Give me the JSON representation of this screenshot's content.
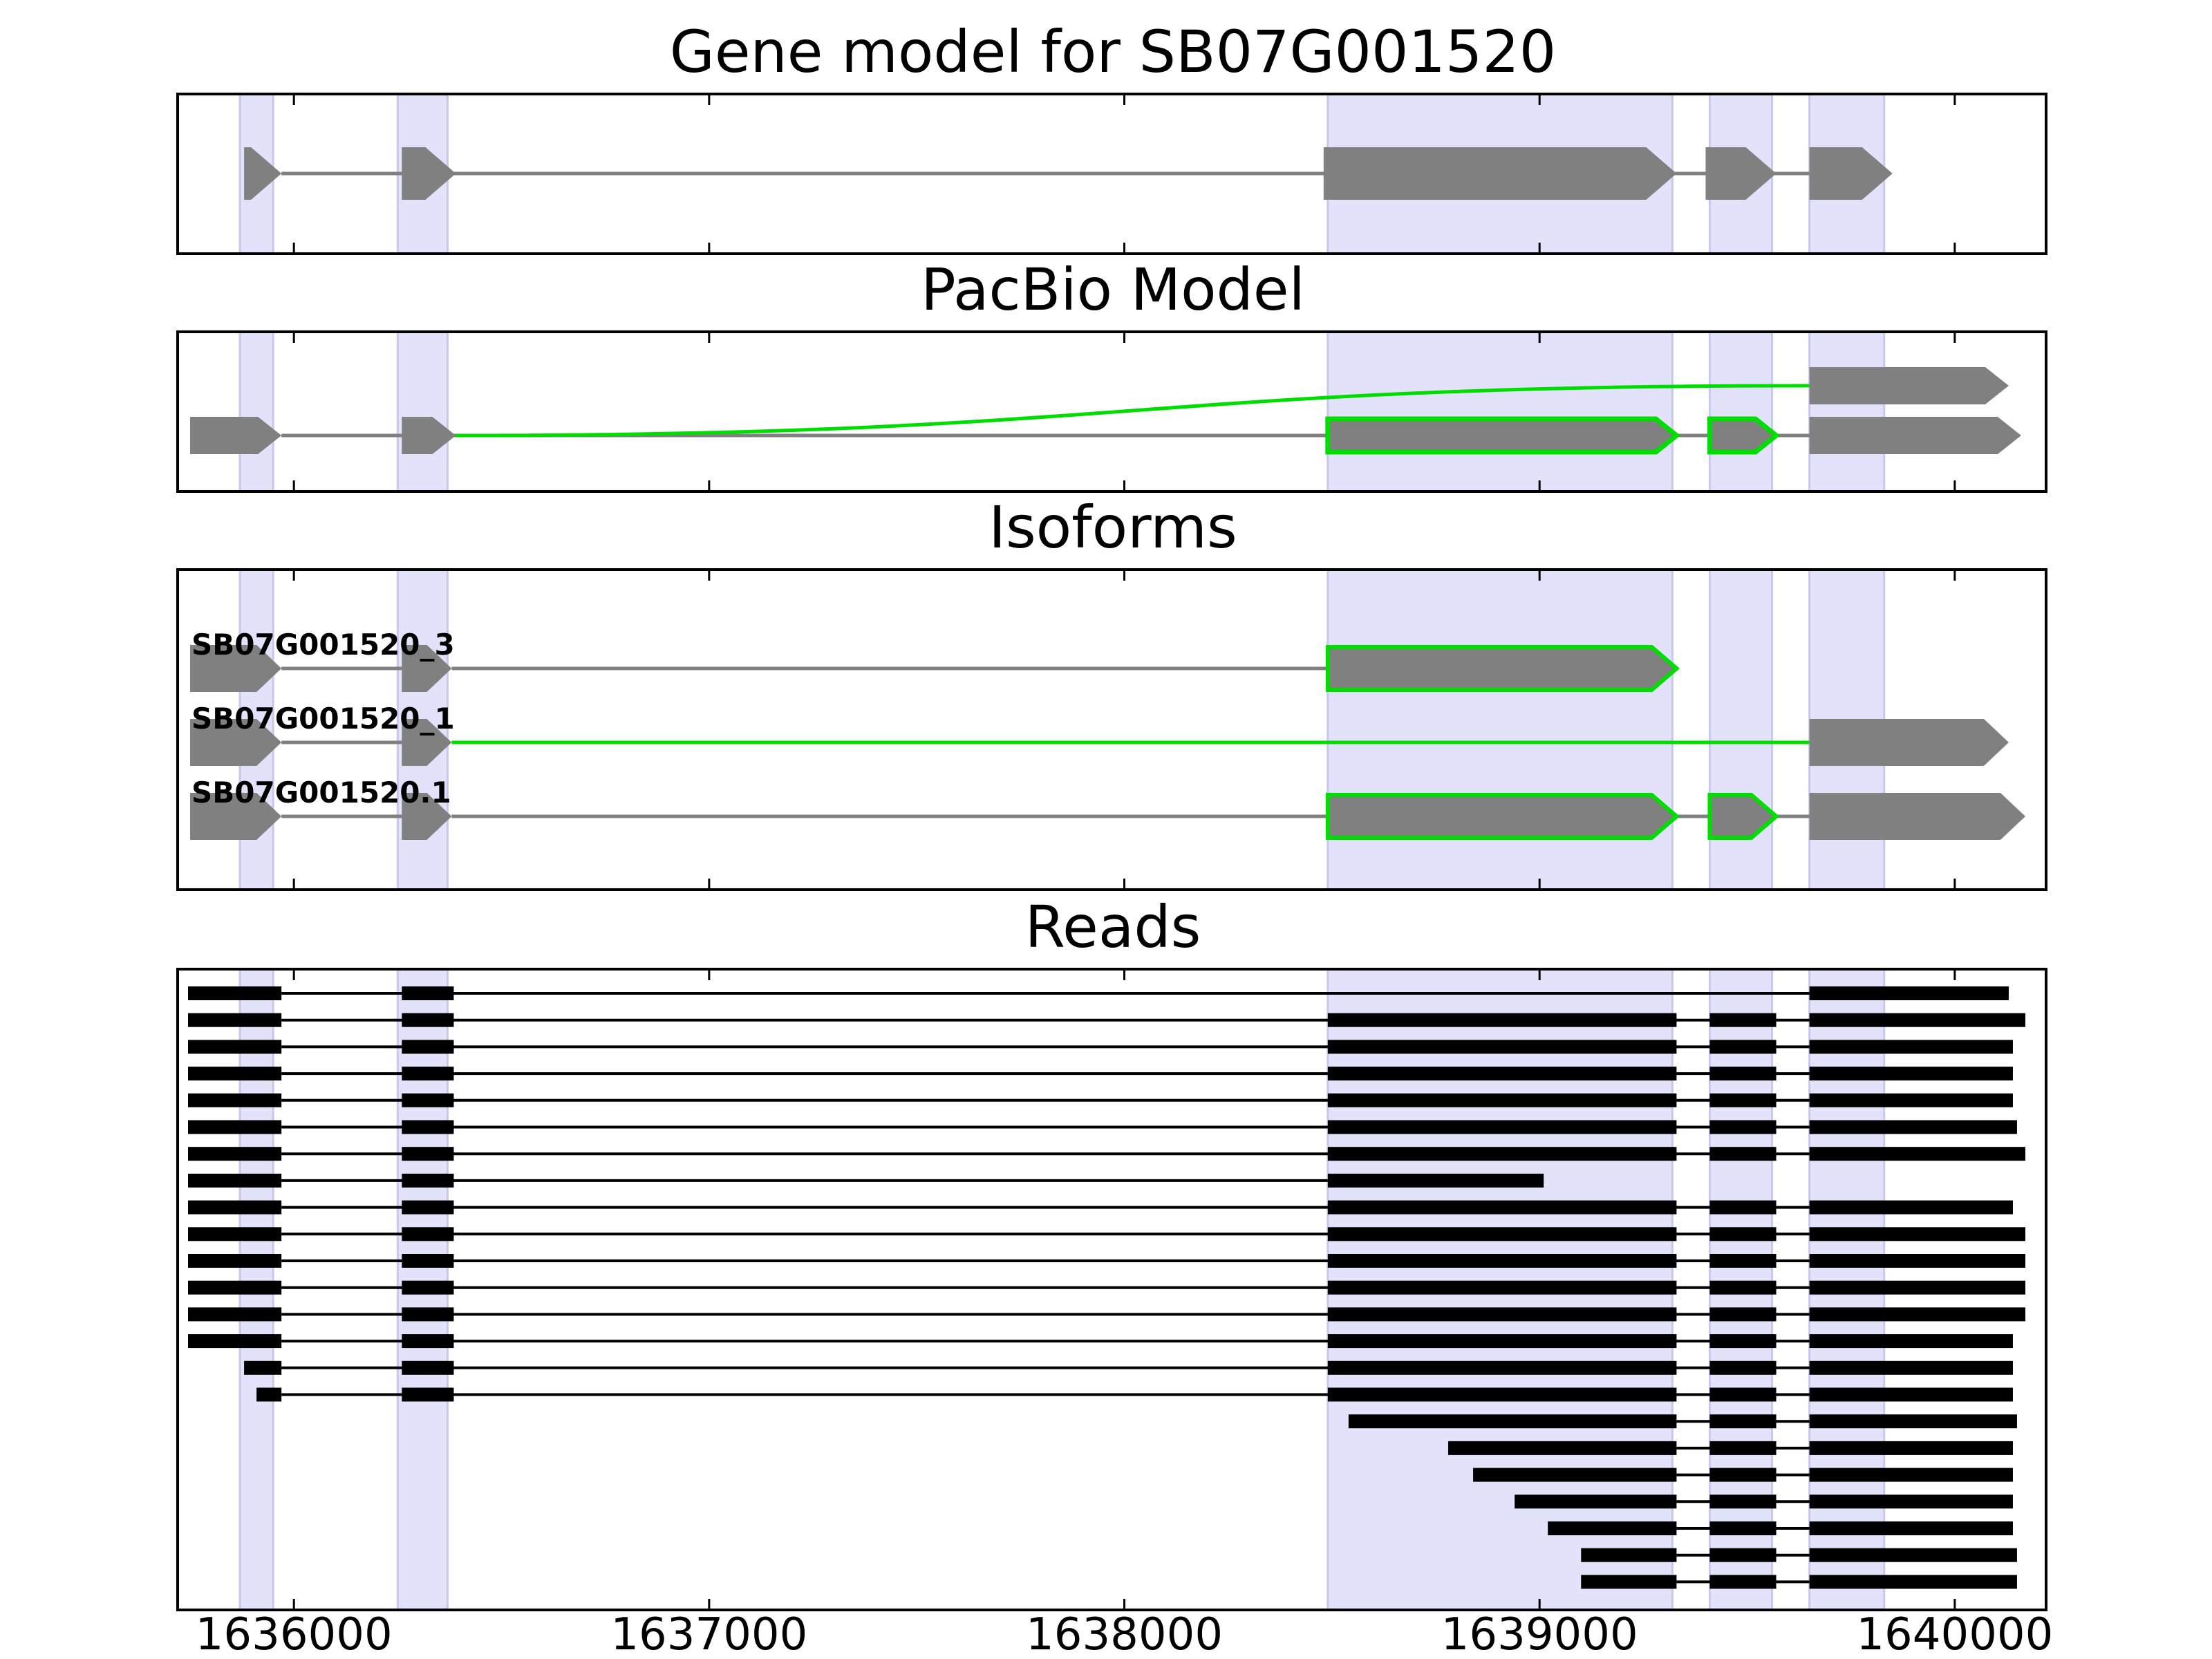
{
  "chart_data": {
    "type": "gene-track",
    "x_axis": {
      "range": [
        1635720,
        1640220
      ],
      "ticks": [
        1636000,
        1637000,
        1638000,
        1639000,
        1640000
      ],
      "tick_labels": [
        "1636000",
        "1637000",
        "1638000",
        "1639000",
        "1640000"
      ]
    },
    "highlight_regions": [
      [
        1635870,
        1635950
      ],
      [
        1636250,
        1636370
      ],
      [
        1638490,
        1639320
      ],
      [
        1639410,
        1639560
      ],
      [
        1639650,
        1639830
      ]
    ],
    "colors": {
      "exon": "#808080",
      "intron": "#808080",
      "highlight": "#e2e2fa",
      "highlight_edge": "#c8c8ee",
      "alt": "#00dd00",
      "read": "#000000"
    },
    "panels": [
      {
        "title": "Gene model for SB07G001520",
        "rows": 1,
        "transcripts": [
          {
            "label": "",
            "row": 0,
            "edge": "none",
            "exons": [
              [
                1635880,
                1635970
              ],
              [
                1636260,
                1636390
              ],
              [
                1638480,
                1639330
              ],
              [
                1639400,
                1639570
              ],
              [
                1639650,
                1639850
              ]
            ]
          }
        ],
        "junctions": []
      },
      {
        "title": "PacBio Model",
        "rows": 2,
        "transcripts": [
          {
            "label": "",
            "row": 1,
            "edge": "none",
            "exons": [
              [
                1635750,
                1635970
              ],
              [
                1636260,
                1636390
              ],
              [
                1639650,
                1640160
              ]
            ]
          },
          {
            "label": "",
            "row": 0,
            "edge": "none",
            "exons": [
              [
                1639650,
                1640130
              ]
            ]
          }
        ],
        "overlays": [
          {
            "row": 1,
            "edge": "#00dd00",
            "exons": [
              [
                1638490,
                1639330
              ],
              [
                1639410,
                1639570
              ]
            ]
          }
        ],
        "junctions": [
          {
            "from": 1636390,
            "to": 1639650,
            "from_row": 1,
            "to_row": 0
          }
        ]
      },
      {
        "title": "Isoforms",
        "rows": 3,
        "transcripts": [
          {
            "label": "SB07G001520_3",
            "row": 0,
            "intron_color": "#808080",
            "exons": [
              [
                1635750,
                1635970
              ],
              [
                1636260,
                1636380
              ],
              [
                1638490,
                1639330
              ]
            ],
            "edges": [
              "none",
              "none",
              "#00dd00"
            ]
          },
          {
            "label": "SB07G001520_1",
            "row": 1,
            "intron_color": "#808080",
            "exons": [
              [
                1635750,
                1635970
              ],
              [
                1636260,
                1636380
              ],
              [
                1639650,
                1640130
              ]
            ],
            "edges": [
              "none",
              "none",
              "none"
            ],
            "green_from": 1636380
          },
          {
            "label": "SB07G001520.1",
            "row": 2,
            "intron_color": "#808080",
            "exons": [
              [
                1635750,
                1635970
              ],
              [
                1636260,
                1636380
              ],
              [
                1638490,
                1639330
              ],
              [
                1639410,
                1639570
              ],
              [
                1639650,
                1640170
              ]
            ],
            "edges": [
              "none",
              "none",
              "#00dd00",
              "#00dd00",
              "none"
            ]
          }
        ]
      },
      {
        "title": "Reads",
        "reads": [
          [
            [
              1635745,
              1635970
            ],
            [
              1636260,
              1636385
            ],
            [
              1639650,
              1640130
            ]
          ],
          [
            [
              1635745,
              1635970
            ],
            [
              1636260,
              1636385
            ],
            [
              1638490,
              1639330
            ],
            [
              1639410,
              1639570
            ],
            [
              1639650,
              1640170
            ]
          ],
          [
            [
              1635745,
              1635970
            ],
            [
              1636260,
              1636385
            ],
            [
              1638490,
              1639330
            ],
            [
              1639410,
              1639570
            ],
            [
              1639650,
              1640140
            ]
          ],
          [
            [
              1635745,
              1635970
            ],
            [
              1636260,
              1636385
            ],
            [
              1638490,
              1639330
            ],
            [
              1639410,
              1639570
            ],
            [
              1639650,
              1640140
            ]
          ],
          [
            [
              1635745,
              1635970
            ],
            [
              1636260,
              1636385
            ],
            [
              1638490,
              1639330
            ],
            [
              1639410,
              1639570
            ],
            [
              1639650,
              1640140
            ]
          ],
          [
            [
              1635745,
              1635970
            ],
            [
              1636260,
              1636385
            ],
            [
              1638490,
              1639330
            ],
            [
              1639410,
              1639570
            ],
            [
              1639650,
              1640150
            ]
          ],
          [
            [
              1635745,
              1635970
            ],
            [
              1636260,
              1636385
            ],
            [
              1638490,
              1639330
            ],
            [
              1639410,
              1639570
            ],
            [
              1639650,
              1640170
            ]
          ],
          [
            [
              1635745,
              1635970
            ],
            [
              1636260,
              1636385
            ],
            [
              1638490,
              1639010
            ]
          ],
          [
            [
              1635745,
              1635970
            ],
            [
              1636260,
              1636385
            ],
            [
              1638490,
              1639330
            ],
            [
              1639410,
              1639570
            ],
            [
              1639650,
              1640140
            ]
          ],
          [
            [
              1635745,
              1635970
            ],
            [
              1636260,
              1636385
            ],
            [
              1638490,
              1639330
            ],
            [
              1639410,
              1639570
            ],
            [
              1639650,
              1640170
            ]
          ],
          [
            [
              1635745,
              1635970
            ],
            [
              1636260,
              1636385
            ],
            [
              1638490,
              1639330
            ],
            [
              1639410,
              1639570
            ],
            [
              1639650,
              1640170
            ]
          ],
          [
            [
              1635745,
              1635970
            ],
            [
              1636260,
              1636385
            ],
            [
              1638490,
              1639330
            ],
            [
              1639410,
              1639570
            ],
            [
              1639650,
              1640170
            ]
          ],
          [
            [
              1635745,
              1635970
            ],
            [
              1636260,
              1636385
            ],
            [
              1638490,
              1639330
            ],
            [
              1639410,
              1639570
            ],
            [
              1639650,
              1640170
            ]
          ],
          [
            [
              1635745,
              1635970
            ],
            [
              1636260,
              1636385
            ],
            [
              1638490,
              1639330
            ],
            [
              1639410,
              1639570
            ],
            [
              1639650,
              1640140
            ]
          ],
          [
            [
              1635880,
              1635970
            ],
            [
              1636260,
              1636385
            ],
            [
              1638490,
              1639330
            ],
            [
              1639410,
              1639570
            ],
            [
              1639650,
              1640140
            ]
          ],
          [
            [
              1635910,
              1635970
            ],
            [
              1636260,
              1636385
            ],
            [
              1638490,
              1639330
            ],
            [
              1639410,
              1639570
            ],
            [
              1639650,
              1640140
            ]
          ],
          [
            [
              1638540,
              1639330
            ],
            [
              1639410,
              1639570
            ],
            [
              1639650,
              1640150
            ]
          ],
          [
            [
              1638780,
              1639330
            ],
            [
              1639410,
              1639570
            ],
            [
              1639650,
              1640140
            ]
          ],
          [
            [
              1638840,
              1639330
            ],
            [
              1639410,
              1639570
            ],
            [
              1639650,
              1640140
            ]
          ],
          [
            [
              1638940,
              1639330
            ],
            [
              1639410,
              1639570
            ],
            [
              1639650,
              1640140
            ]
          ],
          [
            [
              1639020,
              1639330
            ],
            [
              1639410,
              1639570
            ],
            [
              1639650,
              1640140
            ]
          ],
          [
            [
              1639100,
              1639330
            ],
            [
              1639410,
              1639570
            ],
            [
              1639650,
              1640150
            ]
          ],
          [
            [
              1639100,
              1639330
            ],
            [
              1639410,
              1639570
            ],
            [
              1639650,
              1640150
            ]
          ]
        ]
      }
    ]
  }
}
